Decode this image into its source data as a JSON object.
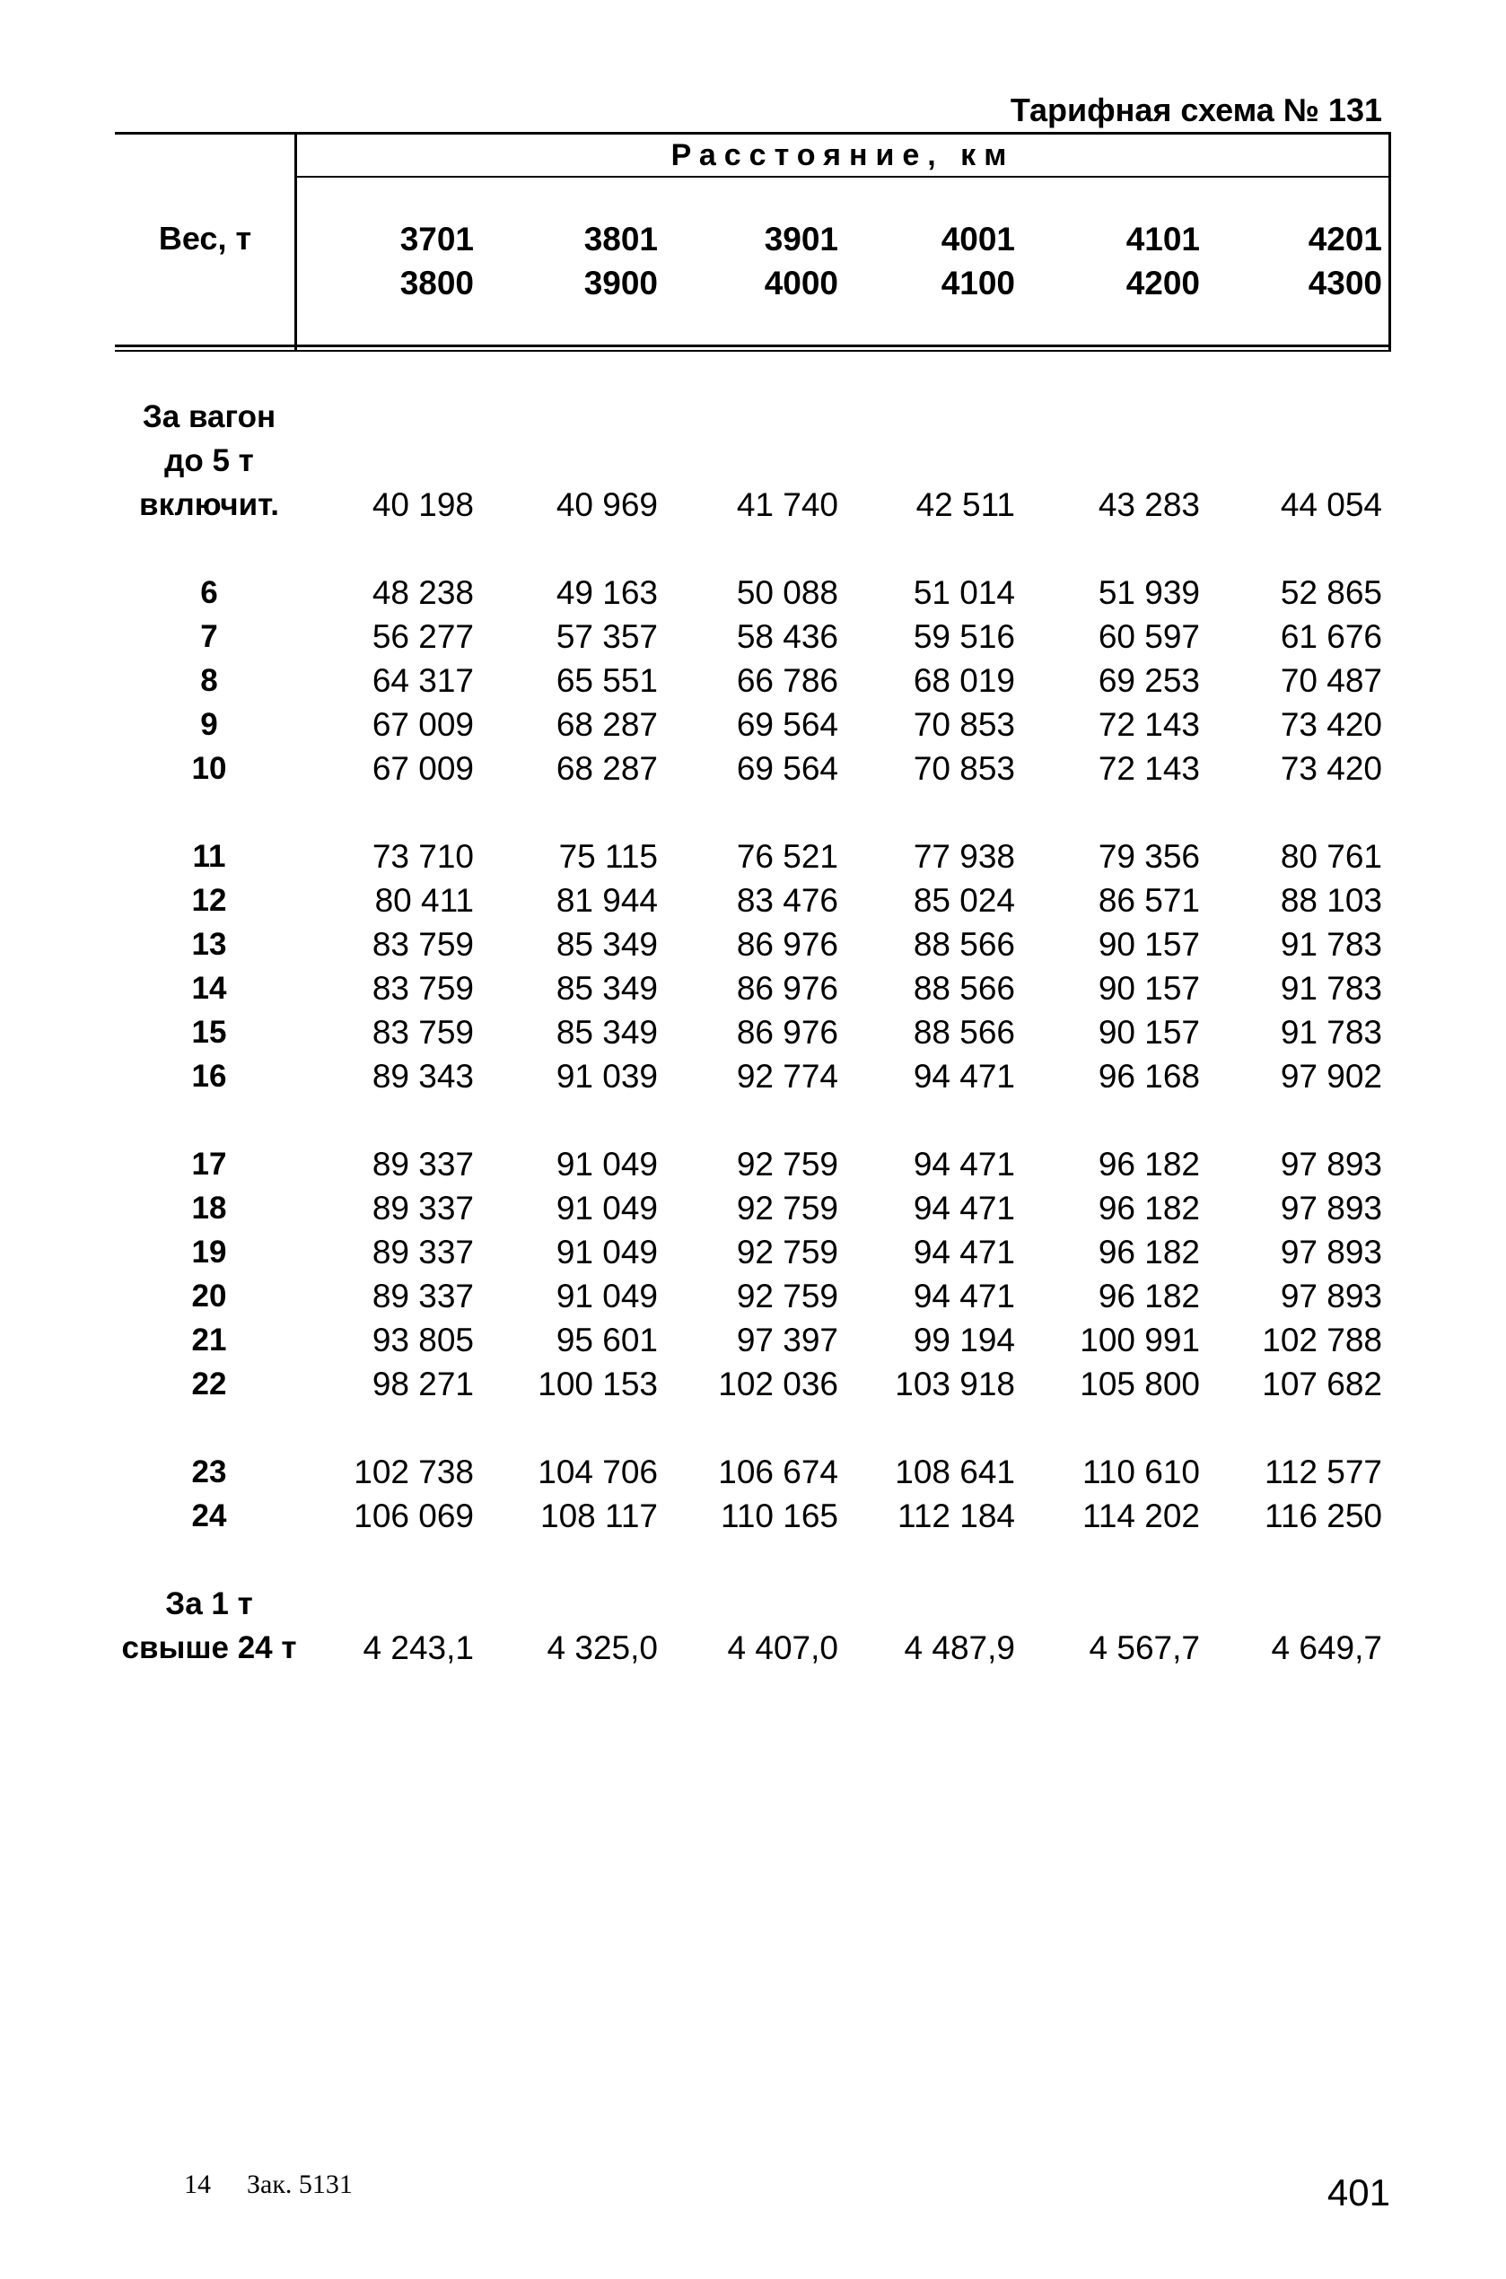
{
  "title": "Тарифная схема № 131",
  "header": {
    "weight_label": "Вес, т",
    "distance_label": "Расстояние, км",
    "ranges": [
      {
        "from": "3701",
        "to": "3800"
      },
      {
        "from": "3801",
        "to": "3900"
      },
      {
        "from": "3901",
        "to": "4000"
      },
      {
        "from": "4001",
        "to": "4100"
      },
      {
        "from": "4101",
        "to": "4200"
      },
      {
        "from": "4201",
        "to": "4300"
      }
    ]
  },
  "groups": [
    [
      {
        "label": "За вагон",
        "values": []
      },
      {
        "label": "до 5 т",
        "values": []
      },
      {
        "label": "включит.",
        "values": [
          "40 198",
          "40 969",
          "41 740",
          "42 511",
          "43 283",
          "44 054"
        ]
      }
    ],
    [
      {
        "label": "6",
        "values": [
          "48 238",
          "49 163",
          "50 088",
          "51 014",
          "51 939",
          "52 865"
        ]
      },
      {
        "label": "7",
        "values": [
          "56 277",
          "57 357",
          "58 436",
          "59 516",
          "60 597",
          "61 676"
        ]
      },
      {
        "label": "8",
        "values": [
          "64 317",
          "65 551",
          "66 786",
          "68 019",
          "69 253",
          "70 487"
        ]
      },
      {
        "label": "9",
        "values": [
          "67 009",
          "68 287",
          "69 564",
          "70 853",
          "72 143",
          "73 420"
        ]
      },
      {
        "label": "10",
        "values": [
          "67 009",
          "68 287",
          "69 564",
          "70 853",
          "72 143",
          "73 420"
        ]
      }
    ],
    [
      {
        "label": "11",
        "values": [
          "73 710",
          "75 115",
          "76 521",
          "77 938",
          "79 356",
          "80 761"
        ]
      },
      {
        "label": "12",
        "values": [
          "80 411",
          "81 944",
          "83 476",
          "85 024",
          "86 571",
          "88 103"
        ]
      },
      {
        "label": "13",
        "values": [
          "83 759",
          "85 349",
          "86 976",
          "88 566",
          "90 157",
          "91 783"
        ]
      },
      {
        "label": "14",
        "values": [
          "83 759",
          "85 349",
          "86 976",
          "88 566",
          "90 157",
          "91 783"
        ]
      },
      {
        "label": "15",
        "values": [
          "83 759",
          "85 349",
          "86 976",
          "88 566",
          "90 157",
          "91 783"
        ]
      },
      {
        "label": "16",
        "values": [
          "89 343",
          "91 039",
          "92 774",
          "94 471",
          "96 168",
          "97 902"
        ]
      }
    ],
    [
      {
        "label": "17",
        "values": [
          "89 337",
          "91 049",
          "92 759",
          "94 471",
          "96 182",
          "97 893"
        ]
      },
      {
        "label": "18",
        "values": [
          "89 337",
          "91 049",
          "92 759",
          "94 471",
          "96 182",
          "97 893"
        ]
      },
      {
        "label": "19",
        "values": [
          "89 337",
          "91 049",
          "92 759",
          "94 471",
          "96 182",
          "97 893"
        ]
      },
      {
        "label": "20",
        "values": [
          "89 337",
          "91 049",
          "92 759",
          "94 471",
          "96 182",
          "97 893"
        ]
      },
      {
        "label": "21",
        "values": [
          "93 805",
          "95 601",
          "97 397",
          "99 194",
          "100 991",
          "102 788"
        ]
      },
      {
        "label": "22",
        "values": [
          "98 271",
          "100 153",
          "102 036",
          "103 918",
          "105 800",
          "107 682"
        ]
      }
    ],
    [
      {
        "label": "23",
        "values": [
          "102 738",
          "104 706",
          "106 674",
          "108 641",
          "110 610",
          "112 577"
        ]
      },
      {
        "label": "24",
        "values": [
          "106 069",
          "108 117",
          "110 165",
          "112 184",
          "114 202",
          "116 250"
        ]
      }
    ],
    [
      {
        "label": "За 1 т",
        "values": []
      },
      {
        "label": "свыше 24 т",
        "values": [
          "4 243,1",
          "4 325,0",
          "4 407,0",
          "4 487,9",
          "4 567,7",
          "4 649,7"
        ]
      }
    ]
  ],
  "footer": {
    "sheet": "14",
    "order": "Зак. 5131",
    "page_number": "401"
  }
}
